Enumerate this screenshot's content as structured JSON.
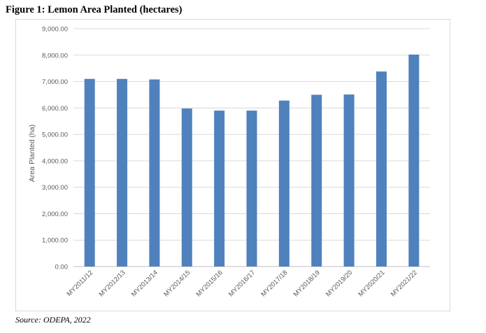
{
  "figure": {
    "title": "Figure 1: Lemon Area Planted (hectares)",
    "source": "Source: ODEPA, 2022"
  },
  "chart_data": {
    "type": "bar",
    "categories": [
      "MY2011/12",
      "MY2012/13",
      "MY2013/14",
      "MY2014/15",
      "MY2015/16",
      "MY2016/17",
      "MY2017/18",
      "MY2018/19",
      "MY2019/20",
      "MY2020/21",
      "MY2021/22"
    ],
    "values": [
      7100,
      7100,
      7080,
      5980,
      5900,
      5900,
      6280,
      6500,
      6510,
      7380,
      8020
    ],
    "ylabel": "Area Planted (ha)",
    "ylim": [
      0,
      9000
    ],
    "yticks": [
      "0.00",
      "1,000.00",
      "2,000.00",
      "3,000.00",
      "4,000.00",
      "5,000.00",
      "6,000.00",
      "7,000.00",
      "8,000.00",
      "9,000.00"
    ],
    "grid": true,
    "legend": "none",
    "bar_color": "#4f81bd",
    "grid_color": "#d9d9d9"
  }
}
